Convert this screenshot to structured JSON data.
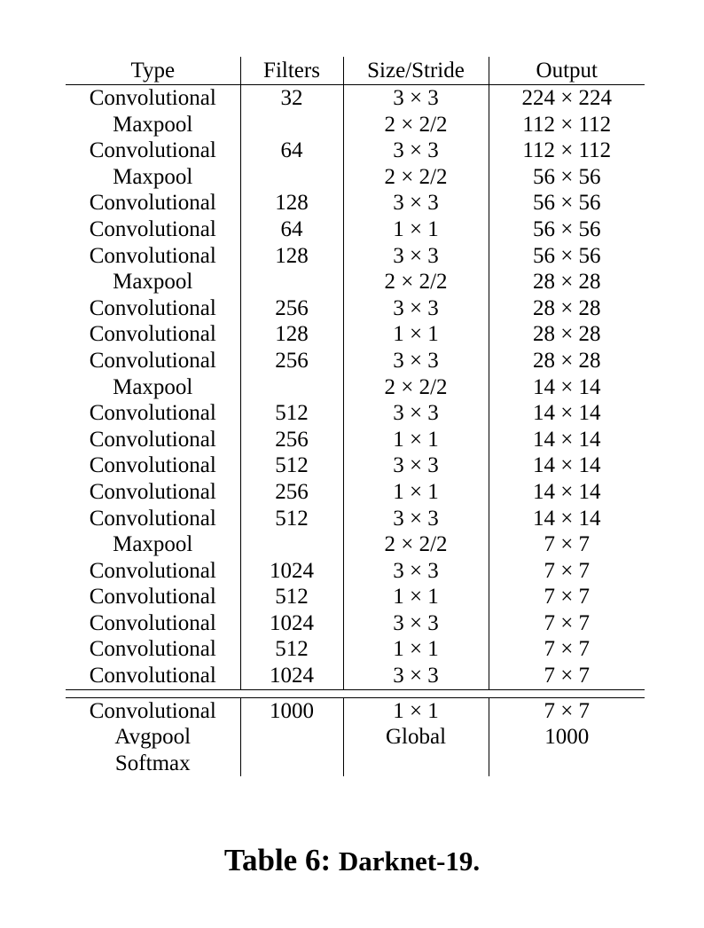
{
  "table": {
    "headers": [
      "Type",
      "Filters",
      "Size/Stride",
      "Output"
    ],
    "rows": [
      [
        "Convolutional",
        "32",
        "3 × 3",
        "224 × 224"
      ],
      [
        "Maxpool",
        "",
        "2 × 2/2",
        "112 × 112"
      ],
      [
        "Convolutional",
        "64",
        "3 × 3",
        "112 × 112"
      ],
      [
        "Maxpool",
        "",
        "2 × 2/2",
        "56 × 56"
      ],
      [
        "Convolutional",
        "128",
        "3 × 3",
        "56 × 56"
      ],
      [
        "Convolutional",
        "64",
        "1 × 1",
        "56 × 56"
      ],
      [
        "Convolutional",
        "128",
        "3 × 3",
        "56 × 56"
      ],
      [
        "Maxpool",
        "",
        "2 × 2/2",
        "28 × 28"
      ],
      [
        "Convolutional",
        "256",
        "3 × 3",
        "28 × 28"
      ],
      [
        "Convolutional",
        "128",
        "1 × 1",
        "28 × 28"
      ],
      [
        "Convolutional",
        "256",
        "3 × 3",
        "28 × 28"
      ],
      [
        "Maxpool",
        "",
        "2 × 2/2",
        "14 × 14"
      ],
      [
        "Convolutional",
        "512",
        "3 × 3",
        "14 × 14"
      ],
      [
        "Convolutional",
        "256",
        "1 × 1",
        "14 × 14"
      ],
      [
        "Convolutional",
        "512",
        "3 × 3",
        "14 × 14"
      ],
      [
        "Convolutional",
        "256",
        "1 × 1",
        "14 × 14"
      ],
      [
        "Convolutional",
        "512",
        "3 × 3",
        "14 × 14"
      ],
      [
        "Maxpool",
        "",
        "2 × 2/2",
        "7 × 7"
      ],
      [
        "Convolutional",
        "1024",
        "3 × 3",
        "7 × 7"
      ],
      [
        "Convolutional",
        "512",
        "1 × 1",
        "7 × 7"
      ],
      [
        "Convolutional",
        "1024",
        "3 × 3",
        "7 × 7"
      ],
      [
        "Convolutional",
        "512",
        "1 × 1",
        "7 × 7"
      ],
      [
        "Convolutional",
        "1024",
        "3 × 3",
        "7 × 7"
      ]
    ],
    "final_rows": [
      [
        "Convolutional",
        "1000",
        "1 × 1",
        "7 × 7"
      ],
      [
        "Avgpool",
        "",
        "Global",
        "1000"
      ],
      [
        "Softmax",
        "",
        "",
        ""
      ]
    ]
  },
  "caption": {
    "label": "Table 6:",
    "name": "Darknet-19."
  }
}
